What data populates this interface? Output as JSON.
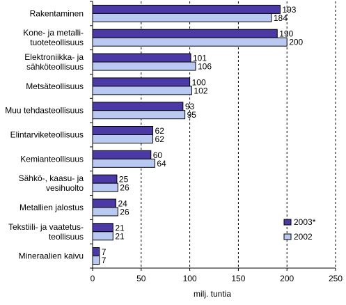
{
  "chart_data": {
    "type": "bar",
    "orientation": "horizontal",
    "categories": [
      [
        "Rakentaminen"
      ],
      [
        "Kone- ja metalli-",
        "tuoteteollisuus"
      ],
      [
        "Elektroniikka- ja",
        "sähköteollisuus"
      ],
      [
        "Metsäteollisuus"
      ],
      [
        "Muu tehdasteollisuus"
      ],
      [
        "Elintarviketeollisuus"
      ],
      [
        "Kemianteollisuus"
      ],
      [
        "Sähkö-, kaasu- ja",
        "vesihuolto"
      ],
      [
        "Metallien jalostus"
      ],
      [
        "Tekstiili- ja vaatetus-",
        "teollisuus"
      ],
      [
        "Mineraalien kaivu"
      ]
    ],
    "series": [
      {
        "name": "2003*",
        "color": "#4b3aa6",
        "values": [
          193,
          190,
          101,
          100,
          93,
          62,
          60,
          25,
          24,
          21,
          7
        ]
      },
      {
        "name": "2002",
        "color": "#b9c9f2",
        "values": [
          184,
          200,
          106,
          102,
          95,
          62,
          64,
          26,
          26,
          21,
          7
        ]
      }
    ],
    "xlabel": "milj. tuntia",
    "xlim": [
      0,
      250
    ],
    "xticks": [
      0,
      50,
      100,
      150,
      200,
      250
    ],
    "gridlines": "vertical-dashed",
    "legend_position": "bottom-right"
  }
}
